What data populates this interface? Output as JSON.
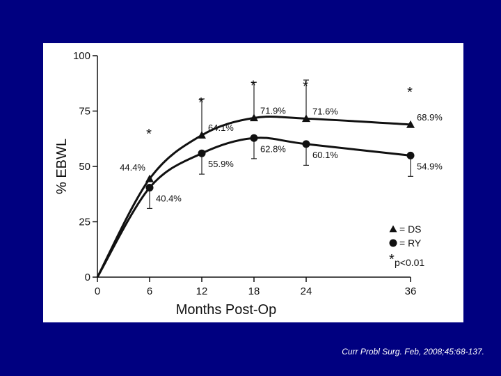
{
  "chart_data": {
    "type": "line",
    "x": [
      0,
      6,
      12,
      18,
      24,
      36
    ],
    "xlabel": "Months Post-Op",
    "ylabel": "% EBWL",
    "xlim": [
      0,
      36
    ],
    "ylim": [
      0,
      100
    ],
    "xticks": [
      "0",
      "6",
      "12",
      "18",
      "24",
      "36"
    ],
    "yticks": [
      "0",
      "25",
      "50",
      "75",
      "100"
    ],
    "grid": false,
    "series": [
      {
        "name": "DS",
        "marker": "triangle",
        "values": [
          0,
          44.4,
          64.1,
          71.9,
          71.6,
          68.9
        ],
        "labels": [
          "",
          "44.4%",
          "64.1%",
          "71.9%",
          "71.6%",
          "68.9%"
        ],
        "error_upper": [
          null,
          null,
          80.5,
          88,
          89,
          null
        ]
      },
      {
        "name": "RY",
        "marker": "circle",
        "values": [
          0,
          40.4,
          55.9,
          62.8,
          60.1,
          54.9
        ],
        "labels": [
          "",
          "40.4%",
          "55.9%",
          "62.8%",
          "60.1%",
          "54.9%"
        ],
        "error_lower": [
          null,
          31,
          46.5,
          53.5,
          50.5,
          45.5
        ]
      }
    ],
    "significance_x": [
      6,
      12,
      18,
      24,
      36
    ],
    "significance_symbol": "*",
    "legend": {
      "placement": "lower-right",
      "entries": [
        "= DS",
        "= RY"
      ],
      "note_symbol": "*",
      "note_text": "p<0.01"
    }
  },
  "citation": "Curr Probl Surg. Feb, 2008;45:68-137."
}
